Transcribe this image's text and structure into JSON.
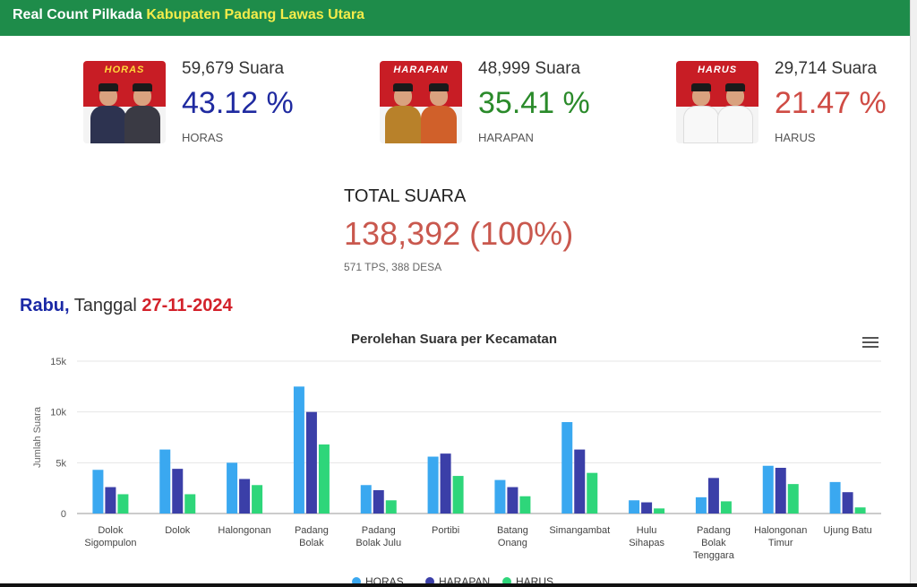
{
  "header": {
    "title_prefix": "Real Count Pilkada ",
    "title_region": "Kabupaten Padang Lawas Utara"
  },
  "candidates": [
    {
      "votes": "59,679 Suara",
      "percent": "43.12 %",
      "name": "HORAS",
      "logo": "HORAS",
      "color": "#1f2aa0"
    },
    {
      "votes": "48,999 Suara",
      "percent": "35.41 %",
      "name": "HARAPAN",
      "logo": "HARAPAN",
      "color": "#2a8a2a"
    },
    {
      "votes": "29,714 Suara",
      "percent": "21.47 %",
      "name": "HARUS",
      "logo": "HARUS",
      "color": "#cf4b44"
    }
  ],
  "total": {
    "label": "TOTAL SUARA",
    "value": "138,392 (100%)",
    "detail": "571 TPS, 388 DESA"
  },
  "date": {
    "day": "Rabu,",
    "word": " Tanggal ",
    "date": "27-11-2024"
  },
  "chart_data": {
    "type": "bar",
    "title": "Perolehan Suara per Kecamatan",
    "ylabel": "Jumlah Suara",
    "xlabel": "",
    "ylim": [
      0,
      15000
    ],
    "yticks": [
      0,
      5000,
      10000,
      15000
    ],
    "ytick_labels": [
      "0",
      "5k",
      "10k",
      "15k"
    ],
    "grid": true,
    "legend": "bottom",
    "categories": [
      [
        "Dolok",
        "Sigompulon"
      ],
      [
        "Dolok"
      ],
      [
        "Halongonan"
      ],
      [
        "Padang",
        "Bolak"
      ],
      [
        "Padang",
        "Bolak Julu"
      ],
      [
        "Portibi"
      ],
      [
        "Batang",
        "Onang"
      ],
      [
        "Simangambat"
      ],
      [
        "Hulu",
        "Sihapas"
      ],
      [
        "Padang",
        "Bolak",
        "Tenggara"
      ],
      [
        "Halongonan",
        "Timur"
      ],
      [
        "Ujung Batu"
      ]
    ],
    "series": [
      {
        "name": "HORAS",
        "color": "#3aa8f0",
        "values": [
          4300,
          6300,
          5000,
          12500,
          2800,
          5600,
          3300,
          9000,
          1300,
          1600,
          4700,
          3100
        ]
      },
      {
        "name": "HARAPAN",
        "color": "#3b3fa8",
        "values": [
          2600,
          4400,
          3400,
          10000,
          2300,
          5900,
          2600,
          6300,
          1100,
          3500,
          4500,
          2100
        ]
      },
      {
        "name": "HARUS",
        "color": "#2ed67a",
        "values": [
          1900,
          1900,
          2800,
          6800,
          1300,
          3700,
          1700,
          4000,
          500,
          1200,
          2900,
          600
        ]
      }
    ]
  }
}
